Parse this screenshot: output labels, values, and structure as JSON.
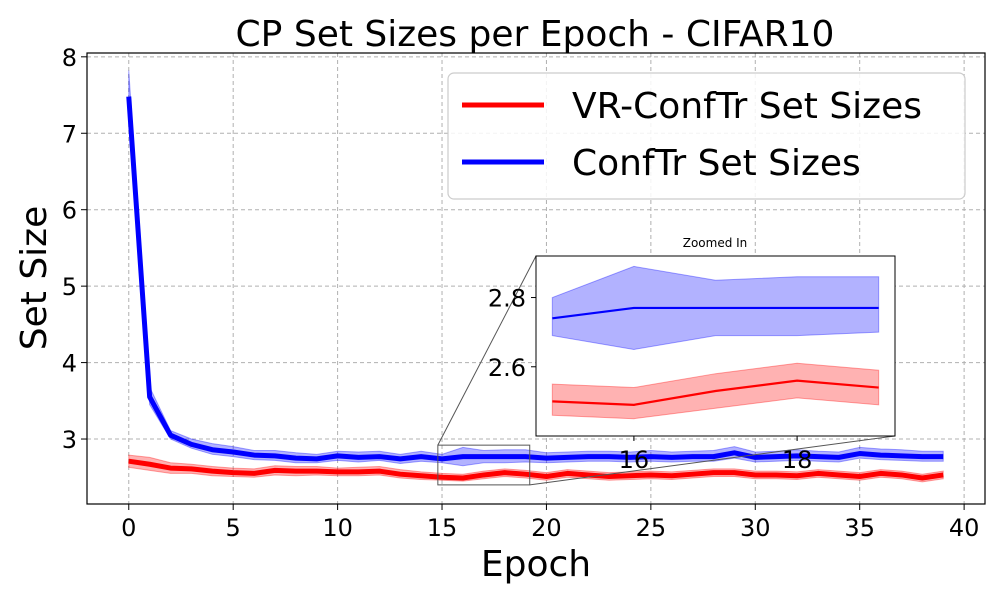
{
  "chart_data": {
    "type": "line",
    "title": "CP Set Sizes per Epoch - CIFAR10",
    "xlabel": "Epoch",
    "ylabel": "Set Size",
    "xlim": [
      -2,
      41
    ],
    "ylim": [
      2.15,
      8.05
    ],
    "xticks": [
      0,
      5,
      10,
      15,
      20,
      25,
      30,
      35,
      40
    ],
    "yticks": [
      3,
      4,
      5,
      6,
      7,
      8
    ],
    "grid": true,
    "legend_position": "top-right",
    "x": [
      0,
      1,
      2,
      3,
      4,
      5,
      6,
      7,
      8,
      9,
      10,
      11,
      12,
      13,
      14,
      15,
      16,
      17,
      18,
      19,
      20,
      21,
      22,
      23,
      24,
      25,
      26,
      27,
      28,
      29,
      30,
      31,
      32,
      33,
      34,
      35,
      36,
      37,
      38,
      39
    ],
    "series": [
      {
        "name": "VR-ConfTr Set Sizes",
        "color": "#ff0000",
        "values": [
          2.71,
          2.67,
          2.62,
          2.61,
          2.58,
          2.56,
          2.55,
          2.59,
          2.58,
          2.58,
          2.57,
          2.57,
          2.58,
          2.54,
          2.52,
          2.5,
          2.49,
          2.53,
          2.56,
          2.54,
          2.51,
          2.55,
          2.53,
          2.51,
          2.52,
          2.53,
          2.52,
          2.54,
          2.56,
          2.56,
          2.53,
          2.53,
          2.52,
          2.55,
          2.53,
          2.51,
          2.55,
          2.53,
          2.49,
          2.53
        ],
        "lower": [
          2.63,
          2.59,
          2.55,
          2.55,
          2.52,
          2.51,
          2.5,
          2.53,
          2.52,
          2.53,
          2.52,
          2.52,
          2.53,
          2.49,
          2.47,
          2.46,
          2.45,
          2.48,
          2.51,
          2.49,
          2.46,
          2.5,
          2.48,
          2.46,
          2.47,
          2.48,
          2.47,
          2.49,
          2.51,
          2.51,
          2.48,
          2.48,
          2.47,
          2.5,
          2.48,
          2.46,
          2.5,
          2.48,
          2.44,
          2.48
        ],
        "upper": [
          2.79,
          2.76,
          2.69,
          2.67,
          2.64,
          2.62,
          2.61,
          2.65,
          2.64,
          2.64,
          2.62,
          2.63,
          2.64,
          2.6,
          2.57,
          2.55,
          2.54,
          2.58,
          2.61,
          2.59,
          2.56,
          2.6,
          2.58,
          2.56,
          2.57,
          2.58,
          2.57,
          2.59,
          2.61,
          2.61,
          2.58,
          2.58,
          2.57,
          2.6,
          2.58,
          2.56,
          2.6,
          2.58,
          2.54,
          2.58
        ]
      },
      {
        "name": "ConfTr Set Sizes",
        "color": "#0000ff",
        "values": [
          7.48,
          3.55,
          3.05,
          2.93,
          2.86,
          2.83,
          2.79,
          2.78,
          2.75,
          2.74,
          2.78,
          2.76,
          2.77,
          2.74,
          2.77,
          2.74,
          2.77,
          2.77,
          2.77,
          2.77,
          2.75,
          2.76,
          2.77,
          2.77,
          2.76,
          2.77,
          2.76,
          2.77,
          2.77,
          2.82,
          2.76,
          2.77,
          2.78,
          2.77,
          2.76,
          2.81,
          2.79,
          2.78,
          2.77,
          2.77
        ],
        "lower": [
          7.2,
          3.45,
          3.0,
          2.88,
          2.8,
          2.77,
          2.73,
          2.72,
          2.69,
          2.69,
          2.72,
          2.7,
          2.72,
          2.68,
          2.71,
          2.69,
          2.65,
          2.69,
          2.69,
          2.7,
          2.69,
          2.7,
          2.71,
          2.71,
          2.7,
          2.71,
          2.7,
          2.71,
          2.71,
          2.75,
          2.7,
          2.71,
          2.72,
          2.71,
          2.7,
          2.75,
          2.73,
          2.72,
          2.71,
          2.71
        ],
        "upper": [
          7.82,
          3.68,
          3.11,
          3.0,
          2.94,
          2.9,
          2.85,
          2.85,
          2.82,
          2.8,
          2.84,
          2.83,
          2.84,
          2.8,
          2.84,
          2.8,
          2.89,
          2.85,
          2.86,
          2.86,
          2.82,
          2.83,
          2.84,
          2.84,
          2.83,
          2.85,
          2.83,
          2.84,
          2.85,
          2.9,
          2.83,
          2.84,
          2.86,
          2.84,
          2.83,
          2.89,
          2.87,
          2.86,
          2.84,
          2.84
        ]
      }
    ],
    "inset": {
      "title": "Zoomed In",
      "xlim": [
        14.8,
        19.2
      ],
      "ylim": [
        2.4,
        2.92
      ],
      "xticks": [
        16,
        18
      ],
      "yticks": [
        2.6,
        2.8
      ]
    }
  }
}
